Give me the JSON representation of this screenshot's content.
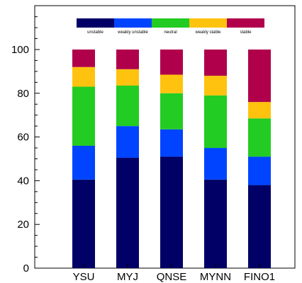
{
  "chart_data": {
    "type": "bar",
    "stacked": true,
    "categories": [
      "YSU",
      "MYJ",
      "QNSE",
      "MYNN",
      "FINO1"
    ],
    "series": [
      {
        "name": "unstable",
        "color": "#000066",
        "values": [
          40.5,
          50.5,
          51,
          40.5,
          38
        ]
      },
      {
        "name": "weakly unstable",
        "color": "#0044ff",
        "values": [
          15.5,
          14.5,
          12.5,
          14.5,
          13
        ]
      },
      {
        "name": "neutral",
        "color": "#22cc22",
        "values": [
          27,
          18.5,
          16.5,
          24,
          17.5
        ]
      },
      {
        "name": "weakly stable",
        "color": "#ffc20e",
        "values": [
          9,
          7.5,
          8.5,
          9,
          7.5
        ]
      },
      {
        "name": "stable",
        "color": "#b0004b",
        "values": [
          8,
          9,
          11.5,
          12,
          24
        ]
      }
    ],
    "ylim": [
      0,
      100
    ],
    "yticks": [
      0,
      20,
      40,
      60,
      80,
      100
    ],
    "legend_position": "top",
    "grid": false,
    "title": "",
    "xlabel": "",
    "ylabel": ""
  }
}
